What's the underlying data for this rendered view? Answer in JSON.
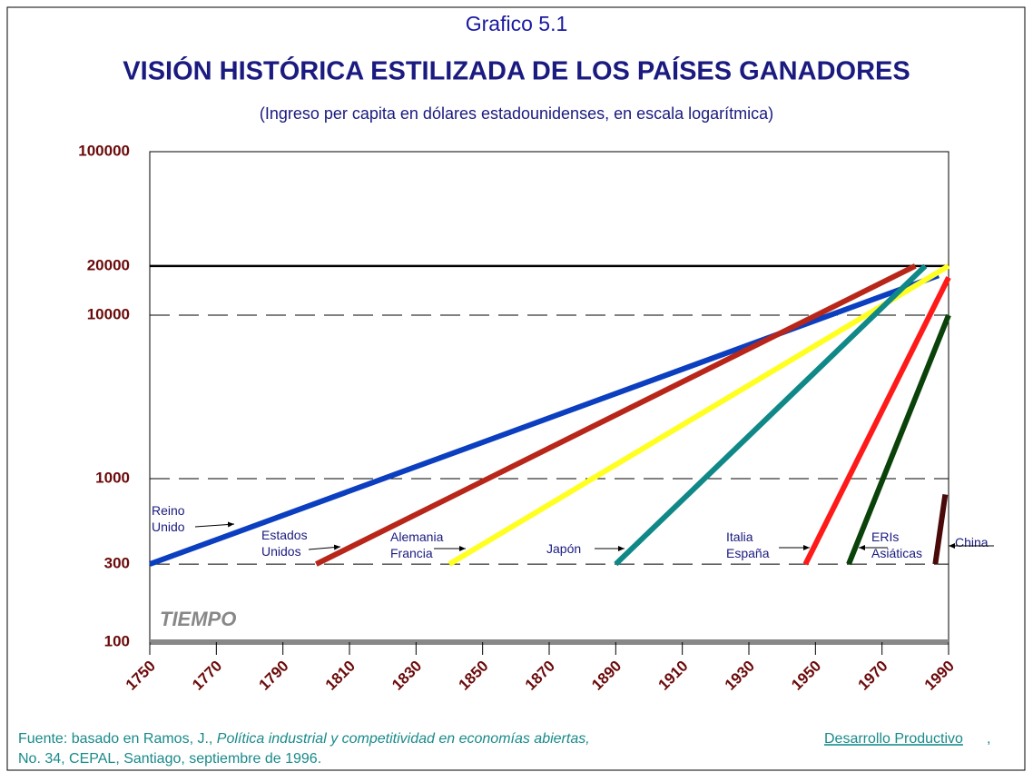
{
  "chart_data": {
    "type": "line",
    "title": "Grafico 5.1",
    "heading": "VISIÓN HISTÓRICA ESTILIZADA DE LOS PAÍSES GANADORES",
    "subtitle": "(Ingreso per capita en dólares estadounidenses, en escala logarítmica)",
    "x_label": "TIEMPO",
    "log_y": true,
    "xlim": [
      1750,
      1990
    ],
    "xticks": [
      1750,
      1770,
      1790,
      1810,
      1830,
      1850,
      1870,
      1890,
      1910,
      1930,
      1950,
      1970,
      1990
    ],
    "ylim": [
      100,
      100000
    ],
    "yticks": [
      100,
      300,
      1000,
      10000,
      20000,
      100000
    ],
    "hlines": [
      {
        "value": 20000,
        "dashed": false
      },
      {
        "value": 10000,
        "dashed": true
      },
      {
        "value": 1000,
        "dashed": true
      },
      {
        "value": 300,
        "dashed": true
      }
    ],
    "series": [
      {
        "name": "Reino Unido",
        "color": "#0b3fc0",
        "x": [
          1750,
          1987
        ],
        "values": [
          300,
          17500
        ]
      },
      {
        "name": "Estados Unidos",
        "color": "#b8261a",
        "x": [
          1800,
          1980
        ],
        "values": [
          300,
          20000
        ]
      },
      {
        "name": "Alemania Francia",
        "color": "#ffff22",
        "x": [
          1840,
          1990
        ],
        "values": [
          300,
          20000
        ]
      },
      {
        "name": "Japón",
        "color": "#108888",
        "x": [
          1890,
          1983
        ],
        "values": [
          300,
          20000
        ]
      },
      {
        "name": "Italia España",
        "color": "#ff1a1a",
        "x": [
          1947,
          1990
        ],
        "values": [
          300,
          17000
        ]
      },
      {
        "name": "ERIs Asiáticas",
        "color": "#0a420a",
        "x": [
          1960,
          1990
        ],
        "values": [
          300,
          10000
        ]
      },
      {
        "name": "China",
        "color": "#4a0a0a",
        "x": [
          1986,
          1989
        ],
        "values": [
          300,
          800
        ]
      }
    ],
    "source": {
      "prefix": "Fuente: basado en Ramos, J., ",
      "italic": "Política industrial y competitividad en economías abiertas,",
      "link": "Desarrollo Productivo",
      "after_link": ",",
      "line2": "No. 34, CEPAL, Santiago, septiembre de 1996."
    }
  }
}
